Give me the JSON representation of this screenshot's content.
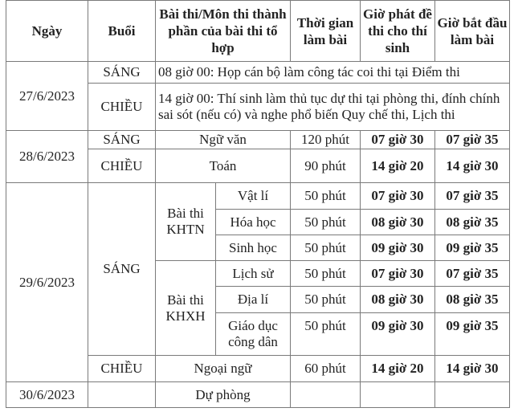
{
  "header": {
    "date": "Ngày",
    "session": "Buổi",
    "subject": "Bài thi/Môn thi thành phần của bài thi tổ hợp",
    "duration": "Thời gian làm bài",
    "paper_time": "Giờ phát đề thi cho thí sinh",
    "start_time": "Giờ bắt đầu làm bài"
  },
  "day1": {
    "date": "27/6/2023",
    "morning": {
      "session": "SÁNG",
      "note": "08 giờ 00: Họp cán bộ làm công tác coi thi tại Điểm thi"
    },
    "afternoon": {
      "session": "CHIỀU",
      "note": "14 giờ 00: Thí sinh làm thủ tục dự thi tại phòng thi, đính chính sai sót (nếu có) và nghe phổ biến Quy chế thi, Lịch thi"
    }
  },
  "day2": {
    "date": "28/6/2023",
    "morning": {
      "session": "SÁNG",
      "subject": "Ngữ văn",
      "duration": "120 phút",
      "paper": "07 giờ 30",
      "start": "07 giờ 35"
    },
    "afternoon": {
      "session": "CHIỀU",
      "subject": "Toán",
      "duration": "90 phút",
      "paper": "14 giờ 20",
      "start": "14 giờ 30"
    }
  },
  "day3": {
    "date": "29/6/2023",
    "morning_session": "SÁNG",
    "khtn": {
      "label": "Bài thi KHTN",
      "rows": [
        {
          "subject": "Vật lí",
          "duration": "50 phút",
          "paper": "07 giờ 30",
          "start": "07 giờ 35"
        },
        {
          "subject": "Hóa học",
          "duration": "50 phút",
          "paper": "08 giờ 30",
          "start": "08 giờ 35"
        },
        {
          "subject": "Sinh học",
          "duration": "50 phút",
          "paper": "09 giờ 30",
          "start": "09 giờ 35"
        }
      ]
    },
    "khxh": {
      "label": "Bài thi KHXH",
      "rows": [
        {
          "subject": "Lịch sử",
          "duration": "50 phút",
          "paper": "07 giờ 30",
          "start": "07 giờ 35"
        },
        {
          "subject": "Địa lí",
          "duration": "50 phút",
          "paper": "08 giờ 30",
          "start": "08 giờ 35"
        },
        {
          "subject": "Giáo dục công dân",
          "duration": "50 phút",
          "paper": "09 giờ 30",
          "start": "09 giờ 35"
        }
      ]
    },
    "afternoon": {
      "session": "CHIỀU",
      "subject": "Ngoại ngữ",
      "duration": "60 phút",
      "paper": "14 giờ 20",
      "start": "14 giờ 30"
    }
  },
  "day4": {
    "date": "30/6/2023",
    "subject": "Dự phòng"
  }
}
